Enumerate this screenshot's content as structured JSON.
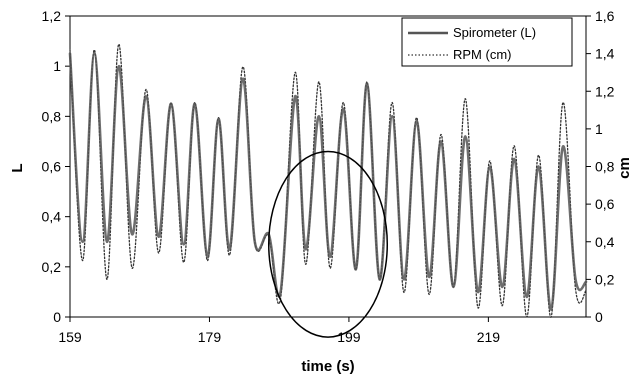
{
  "chart_data": {
    "type": "line",
    "title": "",
    "xlabel": "time (s)",
    "ylabel": "L",
    "y2label": "cm",
    "xlim": [
      159,
      233
    ],
    "ylim": [
      0,
      1.2
    ],
    "y2lim": [
      0,
      1.6
    ],
    "x_ticks": [
      159,
      179,
      199,
      219
    ],
    "x_tick_labels": [
      "159",
      "179",
      "199",
      "219"
    ],
    "y_ticks": [
      0,
      0.2,
      0.4,
      0.6,
      0.8,
      1.0,
      1.2
    ],
    "y_tick_labels": [
      "0",
      "0,2",
      "0,4",
      "0,6",
      "0,8",
      "1",
      "1,2"
    ],
    "y2_ticks": [
      0,
      0.2,
      0.4,
      0.6,
      0.8,
      1.0,
      1.2,
      1.4,
      1.6
    ],
    "y2_tick_labels": [
      "0",
      "0,2",
      "0,4",
      "0,6",
      "0,8",
      "1",
      "1,2",
      "1,4",
      "1,6"
    ],
    "grid": false,
    "legend_position": "top-right",
    "annotation": {
      "shape": "circle",
      "center_x": 196,
      "center_y": 0.29,
      "radius_x_units": 8.5,
      "radius_y_units": 0.37
    },
    "series": [
      {
        "name": "Spirometer (L)",
        "axis": "left",
        "style": "solid",
        "color": "#555555",
        "x": [
          159.0,
          160.8,
          162.5,
          164.3,
          166.0,
          167.9,
          169.9,
          171.7,
          173.5,
          175.3,
          176.9,
          178.7,
          180.3,
          181.9,
          183.8,
          185.5,
          187.5,
          189.2,
          191.3,
          192.8,
          194.7,
          196.3,
          198.2,
          200.0,
          201.6,
          203.4,
          205.2,
          206.9,
          208.7,
          210.5,
          212.2,
          214.0,
          215.7,
          217.5,
          219.2,
          221.0,
          222.7,
          224.5,
          226.2,
          228.0,
          229.7,
          231.5,
          233.0
        ],
        "y": [
          1.05,
          0.3,
          1.05,
          0.3,
          1.0,
          0.33,
          0.88,
          0.32,
          0.85,
          0.29,
          0.85,
          0.24,
          0.79,
          0.27,
          0.95,
          0.3,
          0.33,
          0.1,
          0.88,
          0.27,
          0.8,
          0.24,
          0.83,
          0.19,
          0.93,
          0.15,
          0.8,
          0.15,
          0.78,
          0.16,
          0.7,
          0.12,
          0.72,
          0.1,
          0.6,
          0.12,
          0.63,
          0.08,
          0.6,
          0.03,
          0.68,
          0.15,
          0.14
        ]
      },
      {
        "name": "RPM (cm)",
        "axis": "right",
        "style": "dotted",
        "color": "#333333",
        "x": [
          159.0,
          160.8,
          162.5,
          164.3,
          166.0,
          167.9,
          169.9,
          171.7,
          173.5,
          175.3,
          176.9,
          178.7,
          180.3,
          181.9,
          183.8,
          185.5,
          187.5,
          189.2,
          191.3,
          192.8,
          194.7,
          196.3,
          198.2,
          200.0,
          201.6,
          203.4,
          205.2,
          206.9,
          208.7,
          210.5,
          212.2,
          214.0,
          215.7,
          217.5,
          219.2,
          221.0,
          222.7,
          224.5,
          226.2,
          228.0,
          229.7,
          231.5,
          233.0
        ],
        "y": [
          1.42,
          0.3,
          1.42,
          0.2,
          1.45,
          0.26,
          1.21,
          0.34,
          1.14,
          0.29,
          1.14,
          0.3,
          1.06,
          0.33,
          1.33,
          0.4,
          0.43,
          0.1,
          1.3,
          0.28,
          1.25,
          0.26,
          1.14,
          0.25,
          1.25,
          0.2,
          1.14,
          0.13,
          1.06,
          0.12,
          0.97,
          0.16,
          1.16,
          0.05,
          0.83,
          0.06,
          0.91,
          0.0,
          0.86,
          0.0,
          1.14,
          0.15,
          0.14
        ]
      }
    ]
  }
}
